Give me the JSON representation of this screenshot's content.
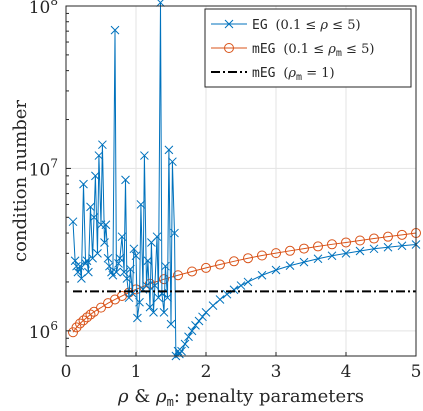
{
  "chart_data": {
    "type": "line",
    "xlabel": {
      "rho": "ρ",
      "amp": " & ",
      "rho_m_base": "ρ",
      "rho_m_sub": "m",
      "rest": ": penalty parameters"
    },
    "ylabel": "condition number",
    "xlim": [
      0,
      5
    ],
    "ylim": [
      700000,
      100000000
    ],
    "yscale": "log",
    "x_ticks": [
      0,
      1,
      2,
      3,
      4,
      5
    ],
    "x_tick_labels": [
      "0",
      "1",
      "2",
      "3",
      "4",
      "5"
    ],
    "y_ticks": [
      1000000,
      10000000,
      100000000
    ],
    "y_tick_labels": [
      {
        "base": "10",
        "exp": "6"
      },
      {
        "base": "10",
        "exp": "7"
      },
      {
        "base": "10",
        "exp": "8"
      }
    ],
    "grid": true,
    "legend_position": "top-right",
    "legend": [
      {
        "code": "EG",
        "range_lo": "(0.1 ≤ ",
        "var": "ρ",
        "var_sub": "",
        "range_hi": " ≤ 5)",
        "color": "#0072bd",
        "marker": "x",
        "style": "solid"
      },
      {
        "code": "mEG",
        "range_lo": "(0.1 ≤ ",
        "var": "ρ",
        "var_sub": "m",
        "range_hi": " ≤ 5)",
        "color": "#d95319",
        "marker": "o",
        "style": "solid"
      },
      {
        "code": "mEG",
        "range_lo": "(",
        "var": "ρ",
        "var_sub": "m",
        "range_hi": " = 1)",
        "color": "#000000",
        "marker": "none",
        "style": "dashdot"
      }
    ],
    "series": [
      {
        "key": "EG",
        "color": "#0072bd",
        "x": [
          0.1,
          0.13,
          0.15,
          0.17,
          0.2,
          0.22,
          0.25,
          0.28,
          0.3,
          0.32,
          0.35,
          0.38,
          0.4,
          0.42,
          0.45,
          0.47,
          0.5,
          0.52,
          0.55,
          0.57,
          0.6,
          0.62,
          0.65,
          0.67,
          0.7,
          0.72,
          0.75,
          0.77,
          0.8,
          0.83,
          0.85,
          0.87,
          0.9,
          0.92,
          0.95,
          0.97,
          1.0,
          1.02,
          1.05,
          1.07,
          1.1,
          1.12,
          1.15,
          1.17,
          1.2,
          1.22,
          1.25,
          1.27,
          1.3,
          1.32,
          1.35,
          1.37,
          1.4,
          1.42,
          1.45,
          1.47,
          1.5,
          1.52,
          1.55,
          1.57,
          1.6,
          1.62,
          1.65,
          1.7,
          1.75,
          1.8,
          1.85,
          1.9,
          1.95,
          2.0,
          2.1,
          2.2,
          2.3,
          2.4,
          2.5,
          2.6,
          2.8,
          3.0,
          3.2,
          3.4,
          3.6,
          3.8,
          4.0,
          4.2,
          4.4,
          4.6,
          4.8,
          5.0
        ],
        "y": [
          4700000,
          2700000,
          2500000,
          2300000,
          2500000,
          2100000,
          8000000,
          2600000,
          2700000,
          2300000,
          5800000,
          2800000,
          5000000,
          9000000,
          3000000,
          12000000,
          4500000,
          14000000,
          3500000,
          4500000,
          2800000,
          2500000,
          2300000,
          2200000,
          71000000,
          2300000,
          2600000,
          2800000,
          3800000,
          2300000,
          8500000,
          2100000,
          1600000,
          2400000,
          1700000,
          3200000,
          2900000,
          1200000,
          1500000,
          6000000,
          1800000,
          12000000,
          1900000,
          2700000,
          1400000,
          3500000,
          1300000,
          1900000,
          3800000,
          1600000,
          105000000,
          1700000,
          1300000,
          2500000,
          1600000,
          13000000,
          1100000,
          11000000,
          4000000,
          700000,
          750000,
          720000,
          750000,
          830000,
          920000,
          1000000,
          1080000,
          1150000,
          1220000,
          1300000,
          1430000,
          1560000,
          1680000,
          1790000,
          1900000,
          2000000,
          2200000,
          2370000,
          2520000,
          2650000,
          2780000,
          2900000,
          3000000,
          3100000,
          3200000,
          3270000,
          3340000,
          3400000
        ]
      },
      {
        "key": "mEG_range",
        "color": "#d95319",
        "x": [
          0.1,
          0.15,
          0.2,
          0.25,
          0.3,
          0.35,
          0.4,
          0.5,
          0.6,
          0.7,
          0.8,
          0.9,
          1.0,
          1.2,
          1.4,
          1.6,
          1.8,
          2.0,
          2.2,
          2.4,
          2.6,
          2.8,
          3.0,
          3.2,
          3.4,
          3.6,
          3.8,
          4.0,
          4.2,
          4.4,
          4.6,
          4.8,
          5.0
        ],
        "y": [
          980000,
          1050000,
          1110000,
          1160000,
          1210000,
          1260000,
          1310000,
          1390000,
          1480000,
          1560000,
          1640000,
          1720000,
          1800000,
          1950000,
          2080000,
          2200000,
          2320000,
          2440000,
          2560000,
          2680000,
          2800000,
          2910000,
          3010000,
          3110000,
          3210000,
          3310000,
          3410000,
          3500000,
          3600000,
          3700000,
          3800000,
          3900000,
          4000000
        ]
      },
      {
        "key": "mEG_fixed",
        "color": "#000000",
        "x": [
          0.1,
          5.0
        ],
        "y": [
          1750000,
          1750000
        ]
      }
    ]
  }
}
